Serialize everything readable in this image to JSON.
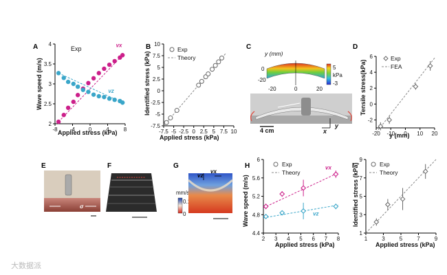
{
  "colors": {
    "magenta": "#cc1f8a",
    "cyan": "#3aa6c9",
    "gray": "#666666",
    "dash": "#888888"
  },
  "panels": {
    "A": {
      "label": "A",
      "note": "Exp",
      "xlabel": "Applied stress (kPa)",
      "ylabel": "Wave speed (m/s)",
      "xticks": [
        "-8",
        "-4",
        "0",
        "4",
        "8"
      ],
      "yticks": [
        "2",
        "2.5",
        "3",
        "3.5",
        "4"
      ],
      "ann_x": "vx",
      "ann_z": "vz"
    },
    "B": {
      "label": "B",
      "xlabel": "Applied stress (kPa)",
      "ylabel": "Identified stress (kPa)",
      "xticks": [
        "-7.5",
        "-5",
        "-2.5",
        "0",
        "2.5",
        "5",
        "7.5",
        "10"
      ],
      "yticks": [
        "-7.5",
        "-5",
        "-2.5",
        "0",
        "2.5",
        "5",
        "7.5",
        "10"
      ],
      "legend_exp": "Exp",
      "legend_theory": "Theory"
    },
    "C": {
      "label": "C",
      "ylabel": "y (mm)",
      "cbar_top": "5",
      "cbar_unit": "kPa",
      "cbar_bot": "-3",
      "yticks": [
        "0",
        "-20"
      ],
      "xticks": [
        "-20",
        "0",
        "20"
      ],
      "us_label": "US",
      "scale_label": "4 cm",
      "axis_x": "x",
      "axis_y": "y"
    },
    "D": {
      "label": "D",
      "xlabel": "y (mm)",
      "ylabel": "Tensile stress(kPa)",
      "xticks": [
        "-20",
        "-10",
        "0",
        "10",
        "20"
      ],
      "yticks": [
        "-2",
        "0",
        "2",
        "4",
        "6"
      ],
      "legend_exp": "Exp",
      "legend_fea": "FEA"
    },
    "E": {
      "label": "E",
      "sigma": "σ"
    },
    "F": {
      "label": "F"
    },
    "G": {
      "label": "G",
      "cbar_unit": "mm/s",
      "cbar_top": "0.1",
      "cbar_bot": "0",
      "ann_z": "vz",
      "ann_x": "vx"
    },
    "H": {
      "label": "H",
      "xlabel": "Applied stress (kPa)",
      "ylabel": "Wave speed (m/s)",
      "xticks": [
        "2",
        "3",
        "4",
        "5",
        "6",
        "7",
        "8"
      ],
      "yticks": [
        "4.4",
        "4.8",
        "5.2",
        "5.6",
        "6"
      ],
      "legend_exp": "Exp",
      "legend_theory": "Theory",
      "ann_x": "vx",
      "ann_z": "vz"
    },
    "I": {
      "label": "I",
      "xlabel": "Applied stress (kPa)",
      "ylabel": "Identified stress (kPa)",
      "xticks": [
        "1",
        "3",
        "5",
        "7",
        "9"
      ],
      "yticks": [
        "1",
        "3",
        "5",
        "7",
        "9"
      ],
      "legend_exp": "Exp",
      "legend_theory": "Theory"
    }
  },
  "watermark": "大数据派",
  "chart_data": [
    {
      "panel": "A",
      "type": "scatter",
      "xlim": [
        -8,
        8
      ],
      "ylim": [
        2,
        4
      ],
      "series": [
        {
          "name": "vx",
          "color": "#cc1f8a",
          "x": [
            -7.2,
            -6,
            -5,
            -3.8,
            -2.8,
            -1.6,
            -0.4,
            0.8,
            2,
            3.2,
            4.4,
            5.6,
            6.8,
            7.4
          ],
          "y": [
            2.05,
            2.22,
            2.4,
            2.55,
            2.72,
            2.88,
            3.02,
            3.14,
            3.27,
            3.38,
            3.48,
            3.57,
            3.66,
            3.72
          ]
        },
        {
          "name": "vz",
          "color": "#3aa6c9",
          "x": [
            -7.2,
            -6,
            -5,
            -3.8,
            -2.8,
            -1.6,
            -0.4,
            0.8,
            2,
            3.2,
            4.4,
            5.6,
            6.8,
            7.4
          ],
          "y": [
            3.27,
            3.15,
            3.05,
            3.0,
            2.93,
            2.85,
            2.8,
            2.73,
            2.69,
            2.67,
            2.63,
            2.6,
            2.57,
            2.53
          ]
        }
      ]
    },
    {
      "panel": "B",
      "type": "scatter",
      "xlim": [
        -7.5,
        10
      ],
      "ylim": [
        -7.5,
        10
      ],
      "x": [
        -6.8,
        -5.8,
        -4.2,
        1.2,
        2,
        3,
        3.6,
        4.6,
        5.4,
        6.2,
        7
      ],
      "y": [
        -6.8,
        -5.8,
        -4.2,
        1.2,
        2,
        3,
        3.6,
        4.6,
        5.4,
        6.2,
        7
      ],
      "theory": [
        [
          -7.5,
          -7.5
        ],
        [
          8,
          8
        ]
      ]
    },
    {
      "panel": "D",
      "type": "scatter",
      "xlim": [
        -20,
        20
      ],
      "ylim": [
        -3,
        6
      ],
      "x": [
        -17,
        -11,
        7,
        17
      ],
      "y": [
        -2.8,
        -2.0,
        2.2,
        4.8
      ],
      "err": [
        0.5,
        0.5,
        0.4,
        0.6
      ],
      "fea": [
        [
          -20,
          -3.6
        ],
        [
          20,
          5.8
        ]
      ]
    },
    {
      "panel": "H",
      "type": "scatter",
      "xlim": [
        2,
        8
      ],
      "ylim": [
        4.4,
        6
      ],
      "categories": [
        2.2,
        3.5,
        5.2,
        7.8
      ],
      "series": [
        {
          "name": "vx",
          "color": "#cc1f8a",
          "values": [
            4.98,
            5.25,
            5.38,
            5.68
          ],
          "err": [
            0.06,
            0.06,
            0.18,
            0.08
          ]
        },
        {
          "name": "vz",
          "color": "#3aa6c9",
          "values": [
            4.76,
            4.84,
            4.88,
            4.98
          ],
          "err": [
            0.05,
            0.05,
            0.18,
            0.06
          ]
        }
      ]
    },
    {
      "panel": "I",
      "type": "scatter",
      "xlim": [
        1,
        9
      ],
      "ylim": [
        1,
        9
      ],
      "x": [
        2.2,
        3.5,
        5.2,
        7.8
      ],
      "y": [
        2.2,
        4.1,
        4.7,
        7.7
      ],
      "err": [
        0.4,
        0.6,
        1.2,
        0.8
      ],
      "theory": [
        [
          1,
          1
        ],
        [
          9,
          9
        ]
      ]
    }
  ]
}
